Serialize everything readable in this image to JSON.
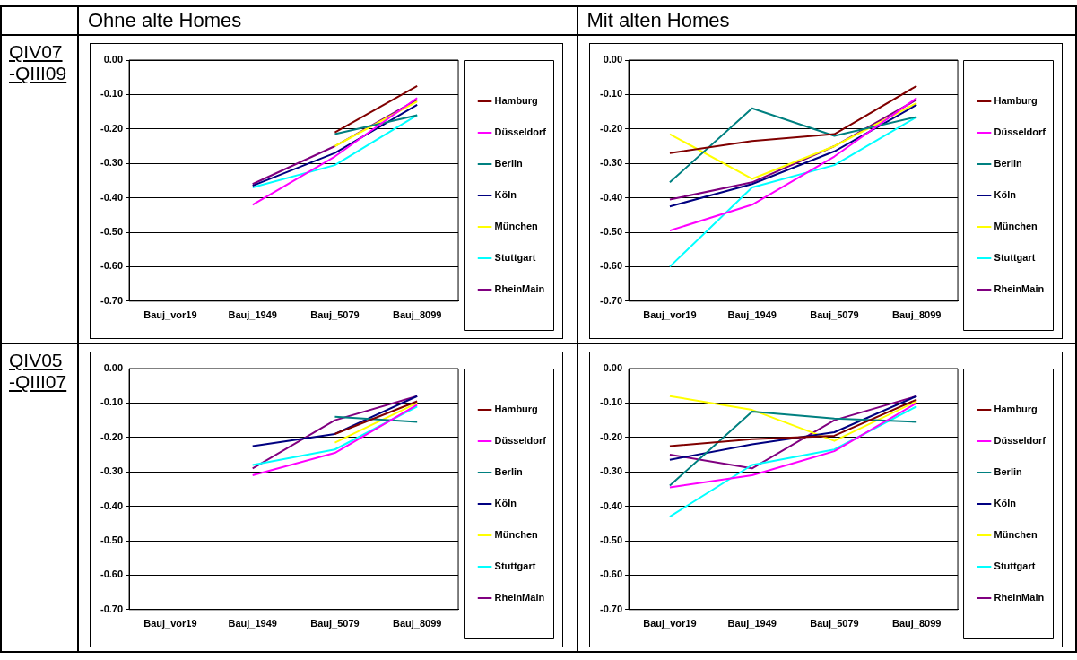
{
  "chart_data": [
    {
      "type": "line",
      "title": "Ohne alte Homes",
      "subtitle": "QIV07 -QIII09",
      "categories": [
        "Bauj_vor19",
        "Bauj_1949",
        "Bauj_5079",
        "Bauj_8099"
      ],
      "ylim": [
        -0.7,
        0
      ],
      "yticks": [
        {
          "value": 0,
          "label": "0.00"
        },
        {
          "value": -0.1,
          "label": "-0.10"
        },
        {
          "value": -0.2,
          "label": "-0.20"
        },
        {
          "value": -0.3,
          "label": "-0.30"
        },
        {
          "value": -0.4,
          "label": "-0.40"
        },
        {
          "value": -0.5,
          "label": "-0.50"
        },
        {
          "value": -0.6,
          "label": "-0.60"
        },
        {
          "value": -0.7,
          "label": "-0.70"
        }
      ],
      "grid": "y",
      "legend": "right",
      "series": [
        {
          "name": "Hamburg",
          "color": "#800000",
          "values": [
            null,
            null,
            -0.21,
            -0.075
          ]
        },
        {
          "name": "Düsseldorf",
          "color": "#ff00ff",
          "values": [
            null,
            -0.42,
            -0.28,
            -0.11
          ]
        },
        {
          "name": "Berlin",
          "color": "#008080",
          "values": [
            null,
            null,
            -0.215,
            -0.16
          ]
        },
        {
          "name": "Köln",
          "color": "#000080",
          "values": [
            null,
            -0.365,
            -0.27,
            -0.13
          ]
        },
        {
          "name": "München",
          "color": "#ffff00",
          "values": [
            null,
            null,
            -0.25,
            -0.12
          ]
        },
        {
          "name": "Stuttgart",
          "color": "#00ffff",
          "values": [
            null,
            -0.37,
            -0.305,
            -0.16
          ]
        },
        {
          "name": "RheinMain",
          "color": "#800080",
          "values": [
            null,
            -0.36,
            -0.25,
            -0.115
          ]
        }
      ]
    },
    {
      "type": "line",
      "title": "Mit alten Homes",
      "categories": [
        "Bauj_vor19",
        "Bauj_1949",
        "Bauj_5079",
        "Bauj_8099"
      ],
      "ylim": [
        -0.7,
        0
      ],
      "yticks": [
        {
          "value": 0,
          "label": "0.00"
        },
        {
          "value": -0.1,
          "label": "-0.10"
        },
        {
          "value": -0.2,
          "label": "-0.20"
        },
        {
          "value": -0.3,
          "label": "-0.30"
        },
        {
          "value": -0.4,
          "label": "-0.40"
        },
        {
          "value": -0.5,
          "label": "-0.50"
        },
        {
          "value": -0.6,
          "label": "-0.60"
        },
        {
          "value": -0.7,
          "label": "-0.70"
        }
      ],
      "grid": "y",
      "legend": "right",
      "series": [
        {
          "name": "Hamburg",
          "color": "#800000",
          "values": [
            -0.27,
            -0.235,
            -0.215,
            -0.075
          ]
        },
        {
          "name": "Düsseldorf",
          "color": "#ff00ff",
          "values": [
            -0.495,
            -0.42,
            -0.28,
            -0.11
          ]
        },
        {
          "name": "Berlin",
          "color": "#008080",
          "values": [
            -0.355,
            -0.14,
            -0.22,
            -0.165
          ]
        },
        {
          "name": "Köln",
          "color": "#000080",
          "values": [
            -0.425,
            -0.36,
            -0.265,
            -0.13
          ]
        },
        {
          "name": "München",
          "color": "#ffff00",
          "values": [
            -0.215,
            -0.345,
            -0.25,
            -0.125
          ]
        },
        {
          "name": "Stuttgart",
          "color": "#00ffff",
          "values": [
            -0.6,
            -0.37,
            -0.305,
            -0.165
          ]
        },
        {
          "name": "RheinMain",
          "color": "#800080",
          "values": [
            -0.405,
            -0.355,
            -0.25,
            -0.115
          ]
        }
      ]
    },
    {
      "type": "line",
      "subtitle": "QIV05 -QIII07",
      "categories": [
        "Bauj_vor19",
        "Bauj_1949",
        "Bauj_5079",
        "Bauj_8099"
      ],
      "ylim": [
        -0.7,
        0
      ],
      "yticks": [
        {
          "value": 0,
          "label": "0.00"
        },
        {
          "value": -0.1,
          "label": "-0.10"
        },
        {
          "value": -0.2,
          "label": "-0.20"
        },
        {
          "value": -0.3,
          "label": "-0.30"
        },
        {
          "value": -0.4,
          "label": "-0.40"
        },
        {
          "value": -0.5,
          "label": "-0.50"
        },
        {
          "value": -0.6,
          "label": "-0.60"
        },
        {
          "value": -0.7,
          "label": "-0.70"
        }
      ],
      "grid": "y",
      "legend": "right",
      "series": [
        {
          "name": "Hamburg",
          "color": "#800000",
          "values": [
            null,
            null,
            -0.19,
            -0.095
          ]
        },
        {
          "name": "Düsseldorf",
          "color": "#ff00ff",
          "values": [
            null,
            -0.31,
            -0.245,
            -0.105
          ]
        },
        {
          "name": "Berlin",
          "color": "#008080",
          "values": [
            null,
            null,
            -0.14,
            -0.155
          ]
        },
        {
          "name": "Köln",
          "color": "#000080",
          "values": [
            null,
            -0.225,
            -0.19,
            -0.08
          ]
        },
        {
          "name": "München",
          "color": "#ffff00",
          "values": [
            null,
            null,
            -0.215,
            -0.1
          ]
        },
        {
          "name": "Stuttgart",
          "color": "#00ffff",
          "values": [
            null,
            -0.28,
            -0.235,
            -0.11
          ]
        },
        {
          "name": "RheinMain",
          "color": "#800080",
          "values": [
            null,
            -0.29,
            -0.15,
            -0.08
          ]
        }
      ]
    },
    {
      "type": "line",
      "categories": [
        "Bauj_vor19",
        "Bauj_1949",
        "Bauj_5079",
        "Bauj_8099"
      ],
      "ylim": [
        -0.7,
        0
      ],
      "yticks": [
        {
          "value": 0,
          "label": "0.00"
        },
        {
          "value": -0.1,
          "label": "-0.10"
        },
        {
          "value": -0.2,
          "label": "-0.20"
        },
        {
          "value": -0.3,
          "label": "-0.30"
        },
        {
          "value": -0.4,
          "label": "-0.40"
        },
        {
          "value": -0.5,
          "label": "-0.50"
        },
        {
          "value": -0.6,
          "label": "-0.60"
        },
        {
          "value": -0.7,
          "label": "-0.70"
        }
      ],
      "grid": "y",
      "legend": "right",
      "series": [
        {
          "name": "Hamburg",
          "color": "#800000",
          "values": [
            -0.225,
            -0.205,
            -0.195,
            -0.09
          ]
        },
        {
          "name": "Düsseldorf",
          "color": "#ff00ff",
          "values": [
            -0.345,
            -0.31,
            -0.24,
            -0.1
          ]
        },
        {
          "name": "Berlin",
          "color": "#008080",
          "values": [
            -0.34,
            -0.125,
            -0.145,
            -0.155
          ]
        },
        {
          "name": "Köln",
          "color": "#000080",
          "values": [
            -0.265,
            -0.22,
            -0.185,
            -0.08
          ]
        },
        {
          "name": "München",
          "color": "#ffff00",
          "values": [
            -0.08,
            -0.12,
            -0.21,
            -0.095
          ]
        },
        {
          "name": "Stuttgart",
          "color": "#00ffff",
          "values": [
            -0.43,
            -0.28,
            -0.235,
            -0.11
          ]
        },
        {
          "name": "RheinMain",
          "color": "#800080",
          "values": [
            -0.25,
            -0.29,
            -0.15,
            -0.08
          ]
        }
      ]
    }
  ]
}
